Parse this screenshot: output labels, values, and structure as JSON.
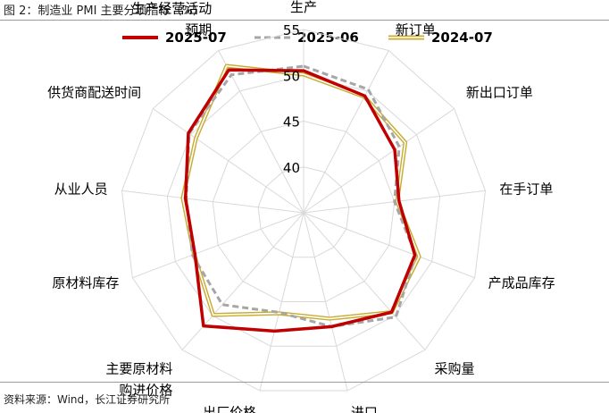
{
  "figure": {
    "title": "图 2：制造业 PMI 主要分项指标（%）",
    "source": "资料来源：Wind，长江证券研究所"
  },
  "chart_data": {
    "type": "radar",
    "title": "",
    "axes": [
      "生产",
      "新订单",
      "新出口订单",
      "在手订单",
      "产成品库存",
      "采购量",
      "进口",
      "出厂价格",
      "主要原材料购进价格",
      "原材料库存",
      "从业人员",
      "供货商配送时间",
      "生产经营活动预期"
    ],
    "axis_label_lines": [
      [
        "生产"
      ],
      [
        "新订单"
      ],
      [
        "新出口订单"
      ],
      [
        "在手订单"
      ],
      [
        "产成品库存"
      ],
      [
        "采购量"
      ],
      [
        "进口"
      ],
      [
        "出厂价格"
      ],
      [
        "主要原材料",
        "购进价格"
      ],
      [
        "原材料库存"
      ],
      [
        "从业人员"
      ],
      [
        "供货商配送时间"
      ],
      [
        "生产经营活动",
        "预期"
      ]
    ],
    "rlim": [
      35,
      55
    ],
    "ticks": [
      40,
      45,
      50,
      55
    ],
    "grid": true,
    "legend_position": "top",
    "series": [
      {
        "name": "2025-07",
        "values": [
          50.5,
          49.4,
          47.1,
          45.5,
          48.0,
          49.5,
          47.8,
          48.3,
          51.5,
          47.7,
          48.0,
          50.3,
          52.6
        ],
        "color": "#c00000",
        "style": "solid"
      },
      {
        "name": "2025-06",
        "values": [
          51.0,
          50.2,
          47.7,
          45.0,
          48.1,
          50.2,
          47.8,
          46.2,
          48.4,
          48.0,
          47.9,
          50.2,
          52.0
        ],
        "color": "#a6a6a6",
        "style": "dashed"
      },
      {
        "name": "2024-07",
        "values": [
          50.1,
          49.3,
          48.5,
          45.3,
          48.5,
          49.5,
          46.9,
          46.3,
          49.9,
          47.8,
          48.3,
          49.3,
          53.1
        ],
        "color": "#c9ac34",
        "style": "double"
      }
    ]
  }
}
